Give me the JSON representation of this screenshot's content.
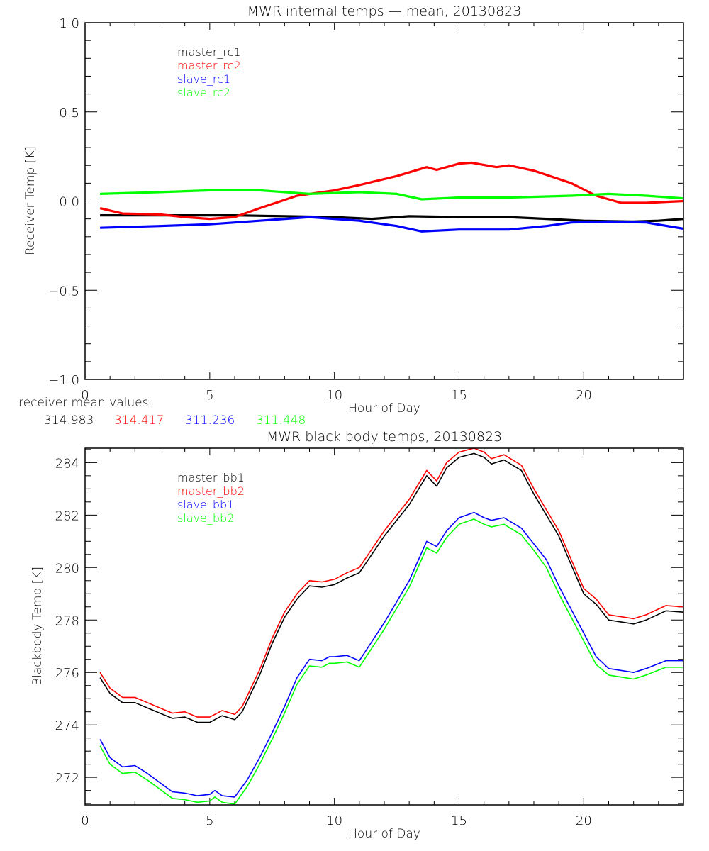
{
  "chart_data": [
    {
      "type": "line",
      "title": "MWR internal temps — mean, 20130823",
      "xlabel": "Hour of Day",
      "ylabel": "Receiver Temp [K]",
      "xlim": [
        0,
        24
      ],
      "ylim": [
        -1.0,
        1.0
      ],
      "x_ticks": [
        0,
        5,
        10,
        15,
        20
      ],
      "x_tick_labels": [
        "0",
        "5",
        "10",
        "15",
        "20"
      ],
      "x_minor_step": 1,
      "y_ticks": [
        -1.0,
        -0.5,
        0.0,
        0.5,
        1.0
      ],
      "y_tick_labels": [
        "−1.0",
        "−0.5",
        "0.0",
        "0.5",
        "1.0"
      ],
      "y_minor_step": 0.1,
      "grid": false,
      "legend_position": "top-left",
      "series": [
        {
          "name": "master_rc1",
          "color": "#000000",
          "x": [
            0.6,
            2,
            4,
            5,
            6,
            8,
            10,
            11.5,
            13,
            15,
            17,
            18.5,
            20,
            22,
            23,
            24
          ],
          "y": [
            -0.08,
            -0.08,
            -0.08,
            -0.08,
            -0.08,
            -0.085,
            -0.09,
            -0.1,
            -0.085,
            -0.09,
            -0.09,
            -0.1,
            -0.11,
            -0.115,
            -0.11,
            -0.1
          ]
        },
        {
          "name": "master_rc2",
          "color": "#ff0000",
          "x": [
            0.6,
            1.5,
            3,
            4,
            5,
            6,
            7,
            8.5,
            10,
            11,
            12.5,
            13.7,
            14.1,
            15,
            15.5,
            16.5,
            17,
            18,
            19.5,
            20.5,
            21.5,
            22.5,
            24
          ],
          "y": [
            -0.04,
            -0.07,
            -0.075,
            -0.09,
            -0.1,
            -0.09,
            -0.04,
            0.03,
            0.06,
            0.09,
            0.14,
            0.19,
            0.175,
            0.21,
            0.215,
            0.19,
            0.2,
            0.17,
            0.1,
            0.03,
            -0.01,
            -0.01,
            0.0
          ]
        },
        {
          "name": "slave_rc1",
          "color": "#0000ff",
          "x": [
            0.6,
            3,
            5,
            7,
            9,
            11,
            12.5,
            13.5,
            15,
            17,
            18.5,
            19.5,
            21,
            22.5,
            24
          ],
          "y": [
            -0.15,
            -0.14,
            -0.13,
            -0.11,
            -0.09,
            -0.11,
            -0.14,
            -0.17,
            -0.16,
            -0.16,
            -0.14,
            -0.12,
            -0.115,
            -0.12,
            -0.155
          ]
        },
        {
          "name": "slave_rc2",
          "color": "#00ff00",
          "x": [
            0.6,
            3,
            5,
            7,
            9,
            11,
            12.5,
            13.5,
            15,
            17,
            19.5,
            21,
            22.5,
            24
          ],
          "y": [
            0.04,
            0.05,
            0.06,
            0.06,
            0.04,
            0.05,
            0.04,
            0.01,
            0.02,
            0.02,
            0.03,
            0.04,
            0.03,
            0.015
          ]
        }
      ],
      "annotation": {
        "label": "receiver mean values:",
        "values": [
          {
            "text": "314.983",
            "color": "#000000"
          },
          {
            "text": "314.417",
            "color": "#ff0000"
          },
          {
            "text": "311.236",
            "color": "#0000ff"
          },
          {
            "text": "311.448",
            "color": "#00ff00"
          }
        ]
      }
    },
    {
      "type": "line",
      "title": "MWR black body temps, 20130823",
      "xlabel": "Hour of Day",
      "ylabel": "Blackbody Temp [K]",
      "xlim": [
        0,
        24
      ],
      "ylim": [
        270.95,
        284.55
      ],
      "x_ticks": [
        0,
        5,
        10,
        15,
        20
      ],
      "x_tick_labels": [
        "0",
        "5",
        "10",
        "15",
        "20"
      ],
      "x_minor_step": 1,
      "y_ticks": [
        272,
        274,
        276,
        278,
        280,
        282,
        284
      ],
      "y_tick_labels": [
        "272",
        "274",
        "276",
        "278",
        "280",
        "282",
        "284"
      ],
      "y_minor_step": 0.5,
      "grid": false,
      "legend_position": "top-left",
      "series": [
        {
          "name": "master_bb1",
          "color": "#000000",
          "x": [
            0.6,
            1.0,
            1.5,
            2.0,
            2.5,
            3.0,
            3.5,
            4.0,
            4.5,
            5.0,
            5.5,
            6.0,
            6.3,
            7.0,
            7.5,
            8.0,
            8.5,
            9.0,
            9.5,
            10.0,
            10.5,
            11.0,
            12.0,
            13.0,
            13.7,
            14.1,
            14.5,
            15.0,
            15.6,
            16.0,
            16.3,
            16.8,
            17.5,
            18.0,
            18.5,
            19.0,
            20.0,
            20.5,
            21.0,
            22.0,
            22.5,
            23.3,
            24.0
          ],
          "y": [
            275.8,
            275.2,
            274.85,
            274.85,
            274.65,
            274.45,
            274.25,
            274.3,
            274.1,
            274.1,
            274.35,
            274.2,
            274.5,
            275.9,
            277.1,
            278.1,
            278.8,
            279.3,
            279.25,
            279.35,
            279.6,
            279.8,
            281.2,
            282.4,
            283.5,
            283.1,
            283.8,
            284.2,
            284.35,
            284.2,
            283.95,
            284.1,
            283.7,
            282.8,
            282.0,
            281.2,
            279.0,
            278.6,
            278.0,
            277.85,
            278.0,
            278.35,
            278.3
          ]
        },
        {
          "name": "master_bb2",
          "color": "#ff0000",
          "x": [
            0.6,
            1.0,
            1.5,
            2.0,
            2.5,
            3.0,
            3.5,
            4.0,
            4.5,
            5.0,
            5.5,
            6.0,
            6.3,
            7.0,
            7.5,
            8.0,
            8.5,
            9.0,
            9.5,
            10.0,
            10.5,
            11.0,
            12.0,
            13.0,
            13.7,
            14.1,
            14.5,
            15.0,
            15.6,
            16.0,
            16.3,
            16.8,
            17.5,
            18.0,
            18.5,
            19.0,
            20.0,
            20.5,
            21.0,
            22.0,
            22.5,
            23.3,
            24.0
          ],
          "y": [
            276.0,
            275.4,
            275.05,
            275.05,
            274.85,
            274.65,
            274.45,
            274.5,
            274.3,
            274.3,
            274.55,
            274.4,
            274.7,
            276.1,
            277.3,
            278.3,
            279.0,
            279.5,
            279.45,
            279.55,
            279.8,
            280.0,
            281.4,
            282.6,
            283.7,
            283.3,
            284.0,
            284.4,
            284.55,
            284.4,
            284.15,
            284.3,
            283.9,
            283.0,
            282.2,
            281.4,
            279.2,
            278.8,
            278.2,
            278.05,
            278.2,
            278.55,
            278.5
          ]
        },
        {
          "name": "slave_bb1",
          "color": "#0000ff",
          "x": [
            0.6,
            1.0,
            1.5,
            2.0,
            2.5,
            3.0,
            3.5,
            4.0,
            4.5,
            5.0,
            5.2,
            5.5,
            6.0,
            6.5,
            7.0,
            7.5,
            8.0,
            8.5,
            9.0,
            9.5,
            9.8,
            10.0,
            10.5,
            11.0,
            12.0,
            13.0,
            13.7,
            14.1,
            14.5,
            15.0,
            15.6,
            16.0,
            16.3,
            16.8,
            17.5,
            18.0,
            18.5,
            19.0,
            20.0,
            20.5,
            21.0,
            22.0,
            22.5,
            23.3,
            24.0
          ],
          "y": [
            273.45,
            272.75,
            272.4,
            272.45,
            272.15,
            271.8,
            271.45,
            271.4,
            271.3,
            271.35,
            271.5,
            271.3,
            271.25,
            271.9,
            272.75,
            273.7,
            274.7,
            275.8,
            276.5,
            276.45,
            276.6,
            276.6,
            276.65,
            276.45,
            277.9,
            279.5,
            281.0,
            280.8,
            281.4,
            281.9,
            282.1,
            281.9,
            281.8,
            281.9,
            281.5,
            280.9,
            280.3,
            279.3,
            277.5,
            276.6,
            276.15,
            276.0,
            276.15,
            276.45,
            276.45
          ]
        },
        {
          "name": "slave_bb2",
          "color": "#00ff00",
          "x": [
            0.6,
            1.0,
            1.5,
            2.0,
            2.5,
            3.0,
            3.5,
            4.0,
            4.5,
            5.0,
            5.2,
            5.5,
            6.0,
            6.5,
            7.0,
            7.5,
            8.0,
            8.5,
            9.0,
            9.5,
            9.8,
            10.0,
            10.5,
            11.0,
            12.0,
            13.0,
            13.7,
            14.1,
            14.5,
            15.0,
            15.6,
            16.0,
            16.3,
            16.8,
            17.5,
            18.0,
            18.5,
            19.0,
            20.0,
            20.5,
            21.0,
            22.0,
            22.5,
            23.3,
            24.0
          ],
          "y": [
            273.2,
            272.5,
            272.15,
            272.2,
            271.9,
            271.55,
            271.2,
            271.15,
            271.05,
            271.1,
            271.25,
            271.05,
            270.98,
            271.65,
            272.5,
            273.45,
            274.45,
            275.55,
            276.25,
            276.2,
            276.35,
            276.35,
            276.4,
            276.2,
            277.65,
            279.25,
            280.75,
            280.55,
            281.15,
            281.65,
            281.85,
            281.65,
            281.55,
            281.65,
            281.25,
            280.65,
            280.0,
            279.0,
            277.2,
            276.3,
            275.9,
            275.75,
            275.9,
            276.2,
            276.2
          ]
        }
      ]
    }
  ]
}
